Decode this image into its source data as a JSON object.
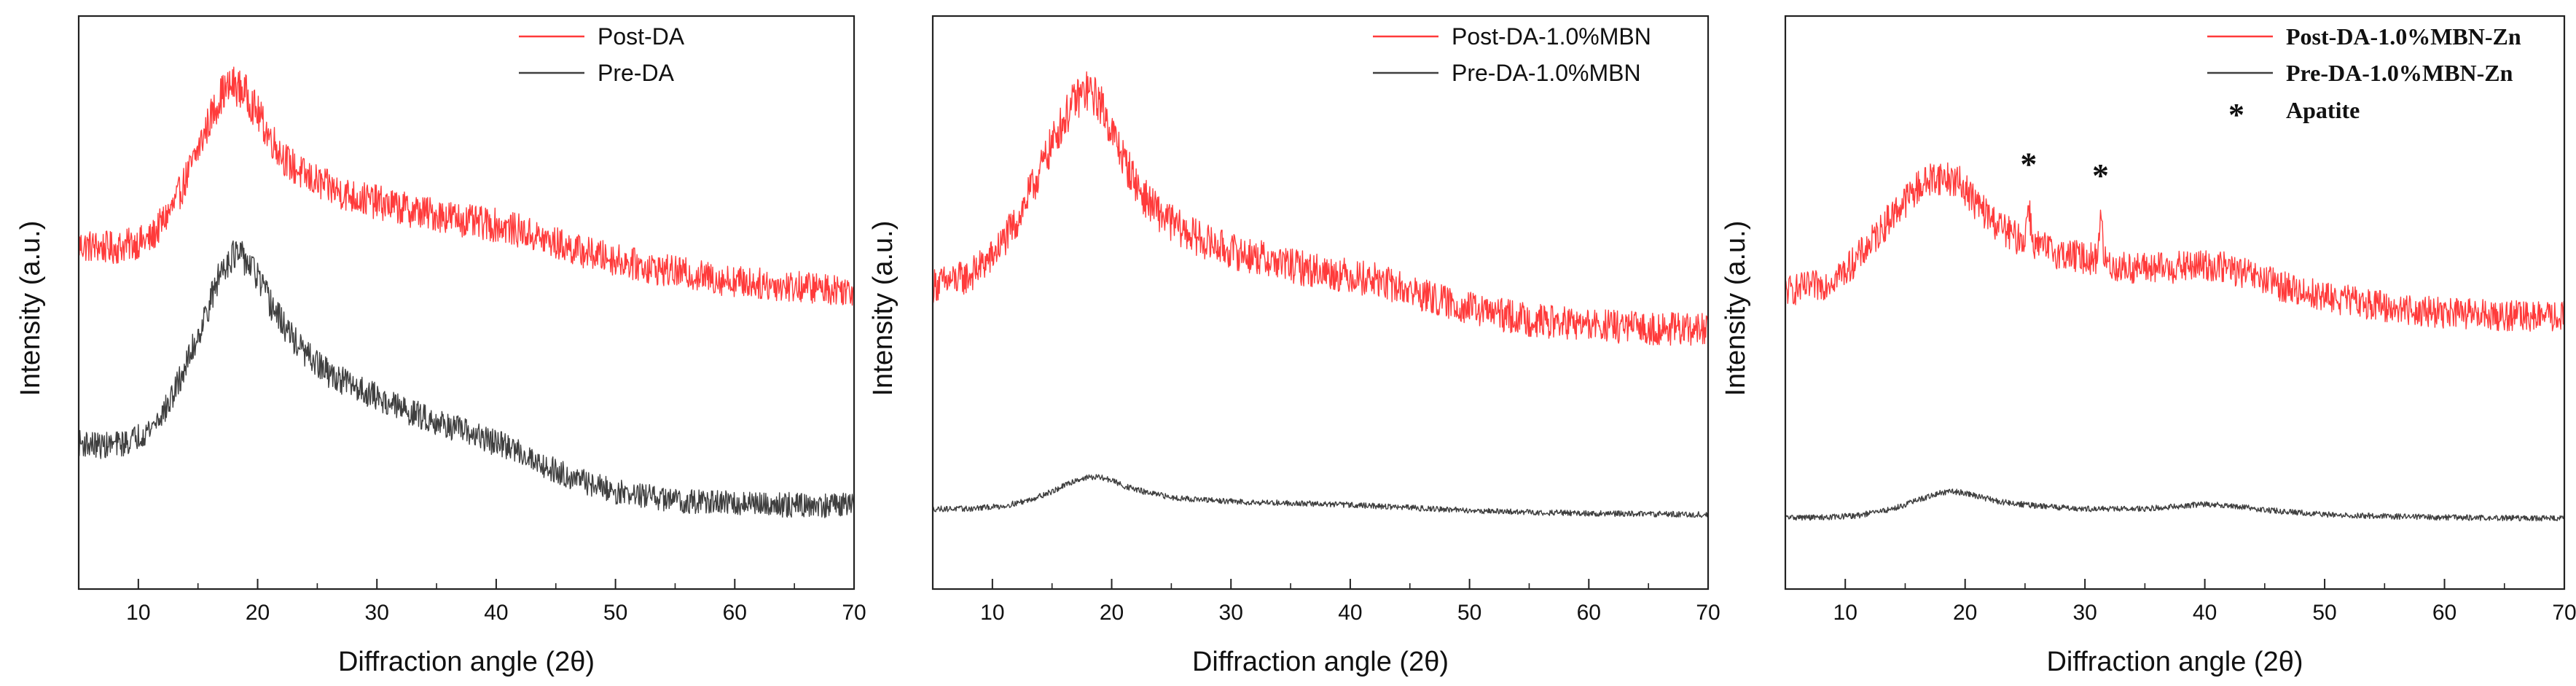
{
  "chart_data": [
    {
      "type": "line",
      "xlabel": "Diffraction angle (2θ)",
      "ylabel": "Intensity (a.u.)",
      "xlim": [
        5,
        70
      ],
      "ylim": [
        0,
        1
      ],
      "xticks": [
        "10",
        "20",
        "30",
        "40",
        "50",
        "60",
        "70"
      ],
      "yticks": "none",
      "legend_position": "top-right",
      "legend_style": "sans",
      "series": [
        {
          "name": "Post-DA",
          "color": "#ff3b3b",
          "noise": 0.022,
          "x": [
            5,
            8,
            11,
            13,
            14.5,
            16,
            17,
            18,
            19,
            20,
            21,
            22.5,
            24,
            26,
            28,
            30,
            33,
            36,
            38,
            40,
            42,
            44,
            47,
            50,
            53,
            56,
            59,
            62,
            65,
            68,
            70
          ],
          "y": [
            0.6,
            0.595,
            0.61,
            0.67,
            0.74,
            0.82,
            0.865,
            0.88,
            0.865,
            0.83,
            0.79,
            0.745,
            0.72,
            0.7,
            0.685,
            0.675,
            0.66,
            0.65,
            0.64,
            0.635,
            0.625,
            0.61,
            0.59,
            0.575,
            0.56,
            0.55,
            0.54,
            0.533,
            0.528,
            0.524,
            0.522
          ]
        },
        {
          "name": "Pre-DA",
          "color": "#3f3f3f",
          "noise": 0.022,
          "x": [
            5,
            7,
            9,
            11,
            12.5,
            14,
            15.5,
            17,
            18,
            19,
            20,
            21,
            22.5,
            24,
            26,
            28,
            30,
            32,
            34,
            36,
            38,
            40,
            42,
            44,
            47,
            50,
            53,
            56,
            59,
            62,
            65,
            68,
            70
          ],
          "y": [
            0.255,
            0.25,
            0.255,
            0.28,
            0.32,
            0.39,
            0.47,
            0.56,
            0.585,
            0.575,
            0.545,
            0.5,
            0.45,
            0.41,
            0.375,
            0.355,
            0.335,
            0.315,
            0.3,
            0.285,
            0.27,
            0.255,
            0.24,
            0.215,
            0.19,
            0.17,
            0.16,
            0.153,
            0.15,
            0.148,
            0.147,
            0.146,
            0.145
          ]
        }
      ],
      "annotations": []
    },
    {
      "type": "line",
      "xlabel": "Diffraction angle (2θ)",
      "ylabel": "Intensity (a.u.)",
      "xlim": [
        5,
        70
      ],
      "ylim": [
        0,
        1
      ],
      "xticks": [
        "10",
        "20",
        "30",
        "40",
        "50",
        "60",
        "70"
      ],
      "yticks": "none",
      "legend_position": "top-right",
      "legend_style": "sans",
      "series": [
        {
          "name": "Post-DA-1.0%MBN",
          "color": "#ff3b3b",
          "noise": 0.024,
          "x": [
            5,
            8,
            10,
            12,
            14,
            15.5,
            17,
            18,
            19,
            20,
            21,
            22.5,
            24,
            26,
            28,
            30,
            33,
            36,
            39,
            42,
            45,
            48,
            51,
            55,
            60,
            65,
            70
          ],
          "y": [
            0.53,
            0.545,
            0.58,
            0.64,
            0.73,
            0.8,
            0.855,
            0.87,
            0.85,
            0.8,
            0.75,
            0.69,
            0.655,
            0.625,
            0.605,
            0.59,
            0.575,
            0.56,
            0.55,
            0.54,
            0.52,
            0.5,
            0.485,
            0.47,
            0.46,
            0.455,
            0.452
          ]
        },
        {
          "name": "Pre-DA-1.0%MBN",
          "color": "#3f3f3f",
          "noise": 0.005,
          "x": [
            5,
            8,
            11,
            13,
            15,
            17,
            18,
            19,
            20,
            21,
            23,
            25,
            28,
            31,
            35,
            40,
            45,
            50,
            55,
            60,
            65,
            70
          ],
          "y": [
            0.14,
            0.14,
            0.145,
            0.155,
            0.17,
            0.19,
            0.195,
            0.195,
            0.19,
            0.18,
            0.168,
            0.16,
            0.155,
            0.152,
            0.15,
            0.147,
            0.142,
            0.137,
            0.134,
            0.132,
            0.131,
            0.13
          ]
        }
      ],
      "annotations": []
    },
    {
      "type": "line",
      "xlabel": "Diffraction angle (2θ)",
      "ylabel": "Intensity (a.u.)",
      "xlim": [
        5,
        70
      ],
      "ylim": [
        0,
        1
      ],
      "xticks": [
        "10",
        "20",
        "30",
        "40",
        "50",
        "60",
        "70"
      ],
      "yticks": "none",
      "legend_position": "top-right",
      "legend_style": "serif",
      "series": [
        {
          "name": "Post-DA-1.0%MBN-Zn",
          "color": "#ff3b3b",
          "noise": 0.022,
          "x": [
            5,
            8,
            10,
            12,
            14,
            16,
            17.5,
            19,
            20,
            21,
            22.5,
            24,
            25,
            25.3,
            25.6,
            25.9,
            26.5,
            28,
            30,
            31,
            31.3,
            31.6,
            31.9,
            32.5,
            34,
            37,
            40,
            42,
            44,
            47,
            50,
            53,
            56,
            60,
            65,
            70
          ],
          "y": [
            0.52,
            0.53,
            0.555,
            0.6,
            0.655,
            0.7,
            0.72,
            0.715,
            0.7,
            0.67,
            0.64,
            0.615,
            0.61,
            0.68,
            0.61,
            0.6,
            0.595,
            0.585,
            0.578,
            0.575,
            0.66,
            0.575,
            0.568,
            0.562,
            0.56,
            0.56,
            0.565,
            0.56,
            0.545,
            0.525,
            0.51,
            0.5,
            0.49,
            0.482,
            0.477,
            0.475
          ]
        },
        {
          "name": "Pre-DA-1.0%MBN-Zn",
          "color": "#3f3f3f",
          "noise": 0.005,
          "x": [
            5,
            8,
            11,
            14,
            16,
            18,
            19,
            20,
            21,
            23,
            26,
            30,
            35,
            38,
            40,
            42,
            45,
            50,
            55,
            60,
            65,
            70
          ],
          "y": [
            0.125,
            0.125,
            0.128,
            0.14,
            0.155,
            0.168,
            0.17,
            0.168,
            0.162,
            0.152,
            0.145,
            0.14,
            0.14,
            0.145,
            0.148,
            0.146,
            0.138,
            0.13,
            0.127,
            0.125,
            0.124,
            0.123
          ]
        }
      ],
      "annotations": [
        {
          "text": "*",
          "x": 25.3,
          "y": 0.74
        },
        {
          "text": "*",
          "x": 31.3,
          "y": 0.72
        }
      ],
      "extra_legend": {
        "marker": "*",
        "label": "Apatite"
      }
    }
  ]
}
